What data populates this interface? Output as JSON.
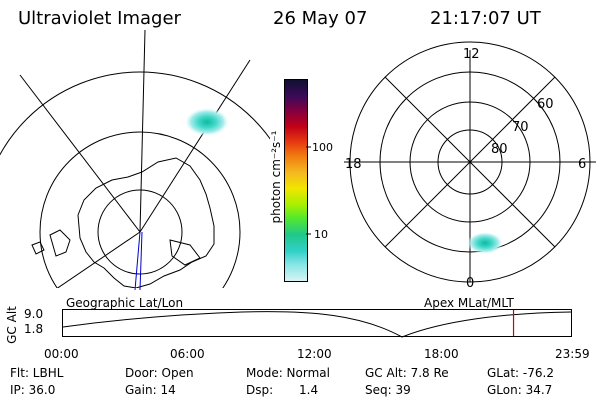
{
  "header": {
    "title": "Ultraviolet Imager",
    "date": "26 May 07",
    "time": "21:17:07 UT"
  },
  "colorbar": {
    "unit_label": "photon cm⁻²s⁻¹",
    "ticks": [
      "100",
      "10"
    ],
    "colors": [
      "#101030",
      "#3a0a5a",
      "#800040",
      "#c00018",
      "#e83a10",
      "#f07d10",
      "#f5b820",
      "#f0e600",
      "#a8f000",
      "#50e830",
      "#20c88a",
      "#30d0c8",
      "#8ae6e6",
      "#d8f4f4"
    ]
  },
  "geo_panel": {
    "label": "Geographic Lat/Lon"
  },
  "mag_panel": {
    "label": "Apex MLat/MLT",
    "mlt_labels": {
      "top": "12",
      "left": "18",
      "right": "6",
      "bottom": "0"
    },
    "lat_labels": [
      "60",
      "70",
      "80"
    ]
  },
  "timeline": {
    "axis_label": "GC Alt",
    "y_ticks": [
      "9.0",
      "1.8"
    ],
    "x_ticks": [
      "00:00",
      "06:00",
      "12:00",
      "18:00",
      "23:59"
    ],
    "marker_time_hours": 21.285,
    "marker_color": "#cc0000"
  },
  "info": {
    "filter": "Flt: LBHL",
    "door": "Door: Open",
    "mode": "Mode: Normal",
    "gc_alt": "GC Alt: 7.8 Re",
    "glat": "GLat: -76.2",
    "ip": "IP: 36.0",
    "gain": "Gain: 14",
    "dsp_label": "Dsp:",
    "dsp_value": "1.4",
    "seq": "Seq: 39",
    "glon": "GLon:  34.7"
  }
}
